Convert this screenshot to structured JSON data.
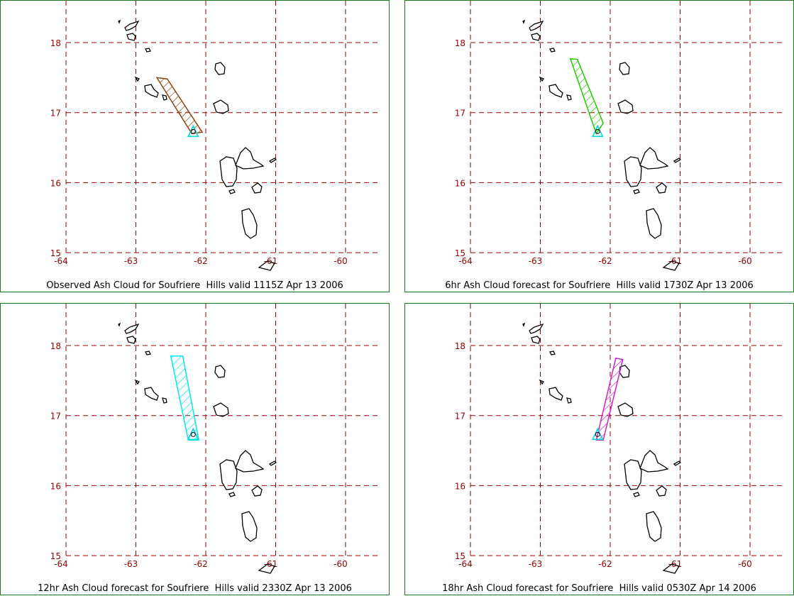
{
  "colors": {
    "grid": "#990000",
    "tick_label": "#990000",
    "coast": "#000000",
    "volcano": "#00d8e0",
    "frame": "#1f7a1f"
  },
  "axes": {
    "lat_ticks": [
      "18",
      "17",
      "16",
      "15"
    ],
    "lon_ticks": [
      "-64",
      "-63",
      "-62",
      "-61",
      "-60"
    ]
  },
  "panels": [
    {
      "caption": "Observed Ash Cloud for Soufriere  Hills valid 1115Z Apr 13 2006",
      "cloud_color": "#8b4513",
      "cloud_polygon": [
        [
          -62.7,
          17.5
        ],
        [
          -62.55,
          17.48
        ],
        [
          -62.05,
          16.72
        ],
        [
          -62.2,
          16.7
        ]
      ]
    },
    {
      "caption": "6hr Ash Cloud forecast for Soufriere  Hills valid 1730Z Apr 13 2006",
      "cloud_color": "#22cc00",
      "cloud_polygon": [
        [
          -62.57,
          17.77
        ],
        [
          -62.47,
          17.76
        ],
        [
          -62.1,
          16.85
        ],
        [
          -62.2,
          16.7
        ]
      ]
    },
    {
      "caption": "12hr Ash Cloud forecast for Soufriere  Hills valid 2330Z Apr 13 2006",
      "cloud_color": "#00e8f0",
      "cloud_polygon": [
        [
          -62.5,
          17.85
        ],
        [
          -62.33,
          17.85
        ],
        [
          -62.1,
          16.65
        ],
        [
          -62.25,
          16.65
        ]
      ]
    },
    {
      "caption": "18hr Ash Cloud forecast for Soufriere  Hills valid 0530Z Apr 14 2006",
      "cloud_color": "#cc22cc",
      "cloud_polygon": [
        [
          -62.2,
          16.65
        ],
        [
          -62.1,
          16.65
        ],
        [
          -61.82,
          17.8
        ],
        [
          -61.92,
          17.82
        ]
      ]
    }
  ],
  "volcano": {
    "name": "Soufriere Hills",
    "lon": -62.18,
    "lat": 16.72
  }
}
